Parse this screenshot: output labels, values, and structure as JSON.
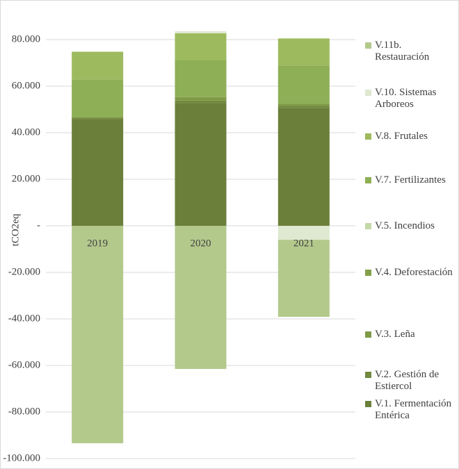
{
  "chart_data": {
    "type": "bar",
    "stacked": true,
    "y_label": "tCO2eq",
    "categories": [
      "2019",
      "2020",
      "2021"
    ],
    "ylim": [
      -100000,
      80000
    ],
    "yticks": [
      {
        "value": 80000,
        "label": "80.000"
      },
      {
        "value": 60000,
        "label": "60.000"
      },
      {
        "value": 40000,
        "label": "40.000"
      },
      {
        "value": 20000,
        "label": "20.000"
      },
      {
        "value": 0,
        "label": "-"
      },
      {
        "value": -20000,
        "label": "-20.000"
      },
      {
        "value": -40000,
        "label": "-40.000"
      },
      {
        "value": -60000,
        "label": "-60.000"
      },
      {
        "value": -80000,
        "label": "-80.000"
      },
      {
        "value": -100000,
        "label": "-100.000"
      }
    ],
    "grid": true,
    "series": [
      {
        "name": "V.11b. Restauración",
        "color": "#b3c98c",
        "values": [
          -93400,
          -61500,
          -33100
        ]
      },
      {
        "name": "V.10. Sistemas Arboreos",
        "color": "#dfe8d0",
        "values": [
          0,
          900,
          -6000
        ]
      },
      {
        "name": "V.8. Frutales",
        "color": "#9dbb5e",
        "values": [
          12000,
          11400,
          11600
        ]
      },
      {
        "name": "V.7. Fertilizantes",
        "color": "#8eaf55",
        "values": [
          16000,
          16000,
          16400
        ]
      },
      {
        "name": "V.5. Incendios",
        "color": "#c5d8a8",
        "values": [
          0,
          0,
          0
        ]
      },
      {
        "name": "V.4. Deforestación",
        "color": "#83a04a",
        "values": [
          0,
          0,
          0
        ]
      },
      {
        "name": "V.3. Leña",
        "color": "#7f9a47",
        "values": [
          400,
          1500,
          1000
        ]
      },
      {
        "name": "V.2. Gestión de Estiercol",
        "color": "#728a3e",
        "values": [
          600,
          1000,
          800
        ]
      },
      {
        "name": "V.1. Fermentación Entérica",
        "color": "#6b7f3a",
        "values": [
          45800,
          52800,
          50700
        ]
      }
    ]
  }
}
